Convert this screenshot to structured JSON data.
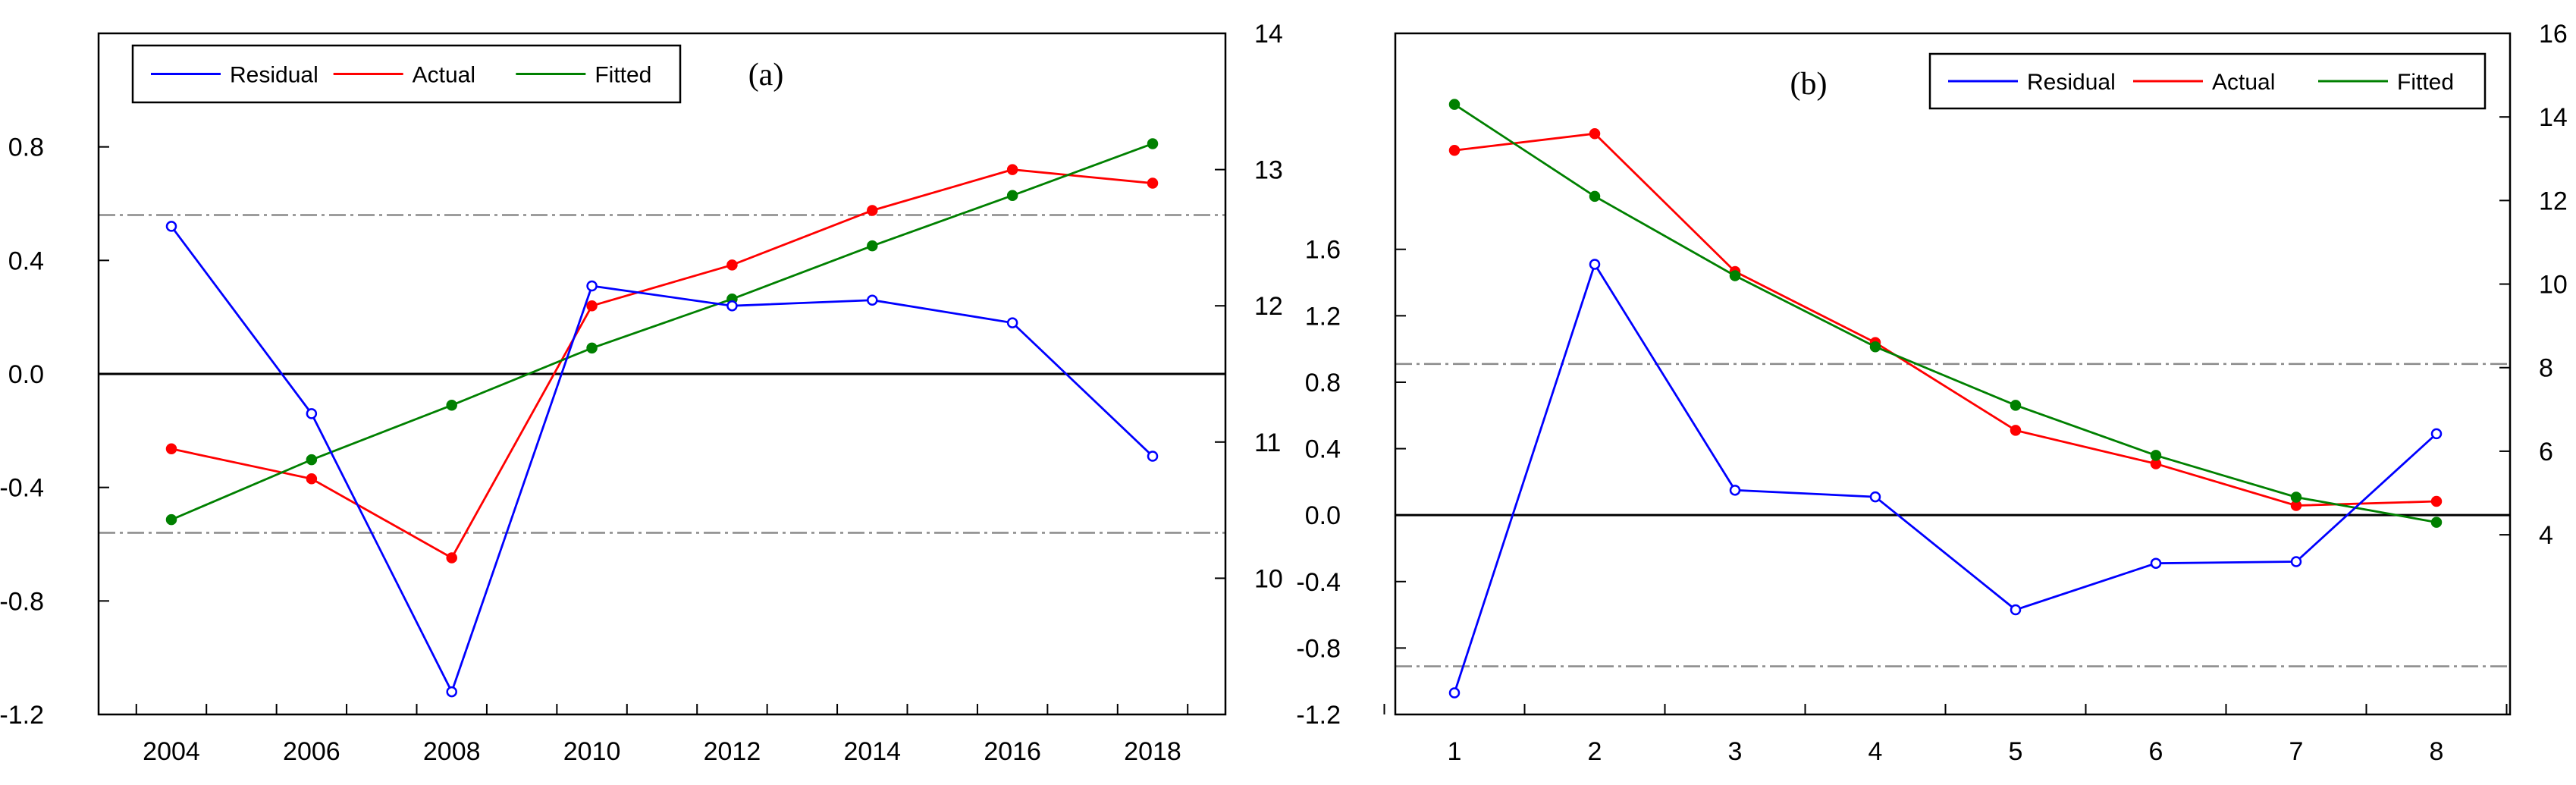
{
  "chart_data": [
    {
      "type": "line",
      "label": "(a)",
      "categories": [
        "2004",
        "2005",
        "2006",
        "2007",
        "2008",
        "2009",
        "2010",
        "2011",
        "2012",
        "2013",
        "2014",
        "2015",
        "2016",
        "2017",
        "2018"
      ],
      "x_tick_labels": [
        "2004",
        "2006",
        "2008",
        "2010",
        "2012",
        "2014",
        "2016",
        "2018"
      ],
      "series": [
        {
          "name": "Residual",
          "axis": "left",
          "color": "#0000ff",
          "values": [
            0.52,
            null,
            -0.14,
            null,
            -1.12,
            null,
            0.31,
            null,
            0.24,
            null,
            0.26,
            null,
            0.18,
            null,
            -0.29
          ]
        },
        {
          "name": "Actual",
          "axis": "right",
          "color": "#ff0000",
          "values": [
            10.95,
            null,
            10.73,
            null,
            10.15,
            null,
            12.0,
            null,
            12.3,
            null,
            12.7,
            null,
            13.0,
            null,
            12.9
          ]
        },
        {
          "name": "Fitted",
          "axis": "right",
          "color": "#008000",
          "values": [
            10.43,
            null,
            10.87,
            null,
            11.27,
            null,
            11.69,
            null,
            12.05,
            null,
            12.44,
            null,
            12.81,
            null,
            13.19
          ]
        }
      ],
      "left_axis": {
        "ticks": [
          "-1.2",
          "-0.8",
          "-0.4",
          "0.0",
          "0.4",
          "0.8"
        ],
        "range": [
          -1.2,
          1.2
        ]
      },
      "right_axis": {
        "ticks": [
          "10",
          "11",
          "12",
          "13",
          "14"
        ],
        "range": [
          9.0,
          14.0
        ]
      },
      "reference_lines": {
        "zero": 0.0,
        "upper": 0.56,
        "lower": -0.56
      },
      "legend": [
        "Residual",
        "Actual",
        "Fitted"
      ],
      "legend_position": "top-left"
    },
    {
      "type": "line",
      "label": "(b)",
      "categories": [
        "1",
        "2",
        "3",
        "4",
        "5",
        "6",
        "7",
        "8"
      ],
      "x_tick_labels": [
        "1",
        "2",
        "3",
        "4",
        "5",
        "6",
        "7",
        "8"
      ],
      "series": [
        {
          "name": "Residual",
          "axis": "left",
          "color": "#0000ff",
          "values": [
            -1.07,
            1.51,
            0.15,
            0.11,
            -0.57,
            -0.29,
            -0.28,
            0.49
          ]
        },
        {
          "name": "Actual",
          "axis": "right",
          "color": "#ff0000",
          "values": [
            13.2,
            13.6,
            10.3,
            8.6,
            6.5,
            5.7,
            4.7,
            4.8
          ]
        },
        {
          "name": "Fitted",
          "axis": "right",
          "color": "#008000",
          "values": [
            14.3,
            12.1,
            10.2,
            8.5,
            7.1,
            5.9,
            4.9,
            4.3
          ]
        }
      ],
      "left_axis": {
        "ticks": [
          "-1.2",
          "-0.8",
          "-0.4",
          "0.0",
          "0.4",
          "0.8",
          "1.2",
          "1.6"
        ],
        "range": [
          -1.2,
          2.9
        ]
      },
      "right_axis": {
        "ticks": [
          "4",
          "6",
          "8",
          "10",
          "12",
          "14",
          "16"
        ],
        "range": [
          -0.3,
          16.0
        ]
      },
      "reference_lines": {
        "zero": 0.0,
        "upper": 0.91,
        "lower": -0.91
      },
      "legend": [
        "Residual",
        "Actual",
        "Fitted"
      ],
      "legend_position": "top-right"
    }
  ]
}
